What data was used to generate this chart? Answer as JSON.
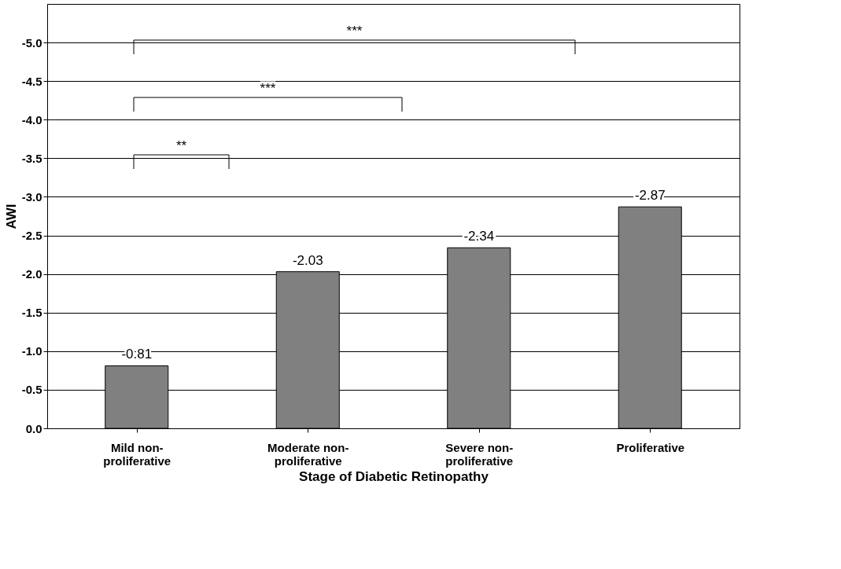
{
  "chart_data": {
    "type": "bar",
    "xlabel": "Stage of Diabetic Retinopathy",
    "ylabel": "AWI",
    "categories": [
      "Mild non-\nproliferative",
      "Moderate non-\nproliferative",
      "Severe non-\nproliferative",
      "Proliferative"
    ],
    "values": [
      -0.81,
      -2.03,
      -2.34,
      -2.87
    ],
    "color": "#808080",
    "ylim": [
      0,
      -5.5
    ],
    "yticks": [
      {
        "value": 0,
        "label": "0.0"
      },
      {
        "value": -0.5,
        "label": "-0.5"
      },
      {
        "value": -1,
        "label": "-1.0"
      },
      {
        "value": -1.5,
        "label": "-1.5"
      },
      {
        "value": -2,
        "label": "-2.0"
      },
      {
        "value": -2.5,
        "label": "-2.5"
      },
      {
        "value": -3,
        "label": "-3.0"
      },
      {
        "value": -3.5,
        "label": "-3.5"
      },
      {
        "value": -4,
        "label": "-4.0"
      },
      {
        "value": -4.5,
        "label": "-4.5"
      },
      {
        "value": -5,
        "label": "-5.0"
      }
    ],
    "grid": "y",
    "data_labels": true,
    "annotations": [
      "**",
      "***",
      "***"
    ]
  }
}
